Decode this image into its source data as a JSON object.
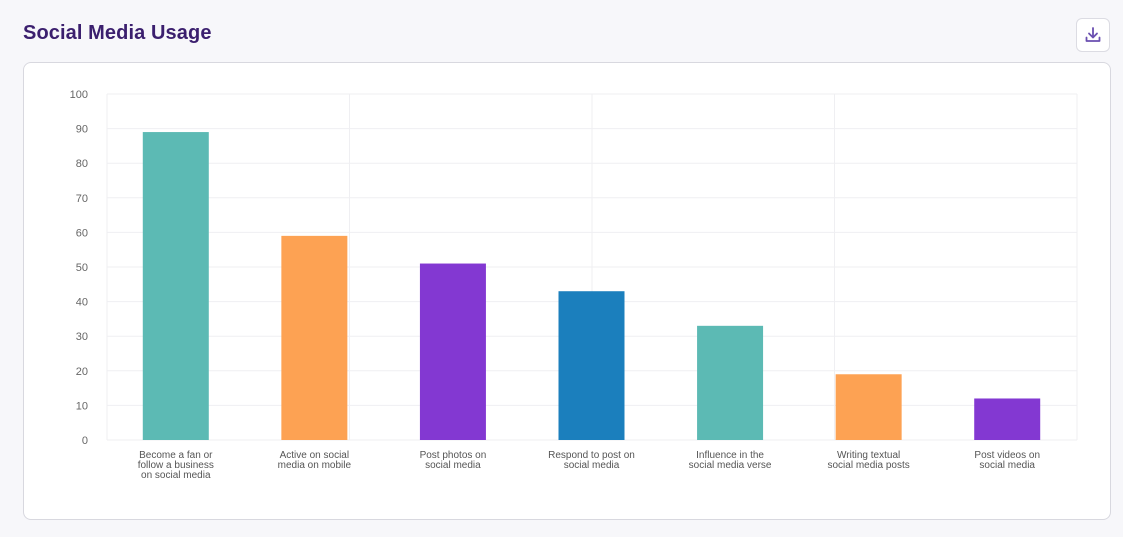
{
  "header": {
    "title": "Social Media Usage",
    "download_icon": "download-icon"
  },
  "chart_data": {
    "type": "bar",
    "title": "Social Media Usage",
    "xlabel": "",
    "ylabel": "",
    "ylim": [
      0,
      100
    ],
    "yticks": [
      0,
      10,
      20,
      30,
      40,
      50,
      60,
      70,
      80,
      90,
      100
    ],
    "grid": true,
    "categories": [
      [
        "Become a fan or",
        "follow a business",
        "on social media"
      ],
      [
        "Active on social",
        "media on mobile"
      ],
      [
        "Post photos on",
        "social media"
      ],
      [
        "Respond to post on",
        "social media"
      ],
      [
        "Influence in the",
        "social media verse"
      ],
      [
        "Writing textual",
        "social media posts"
      ],
      [
        "Post videos on",
        "social media"
      ]
    ],
    "values": [
      89,
      59,
      51,
      43,
      33,
      19,
      12
    ],
    "colors": [
      "#5cbab4",
      "#fda253",
      "#8338d2",
      "#1b7fbd",
      "#5cbab4",
      "#fda253",
      "#8338d2"
    ]
  }
}
